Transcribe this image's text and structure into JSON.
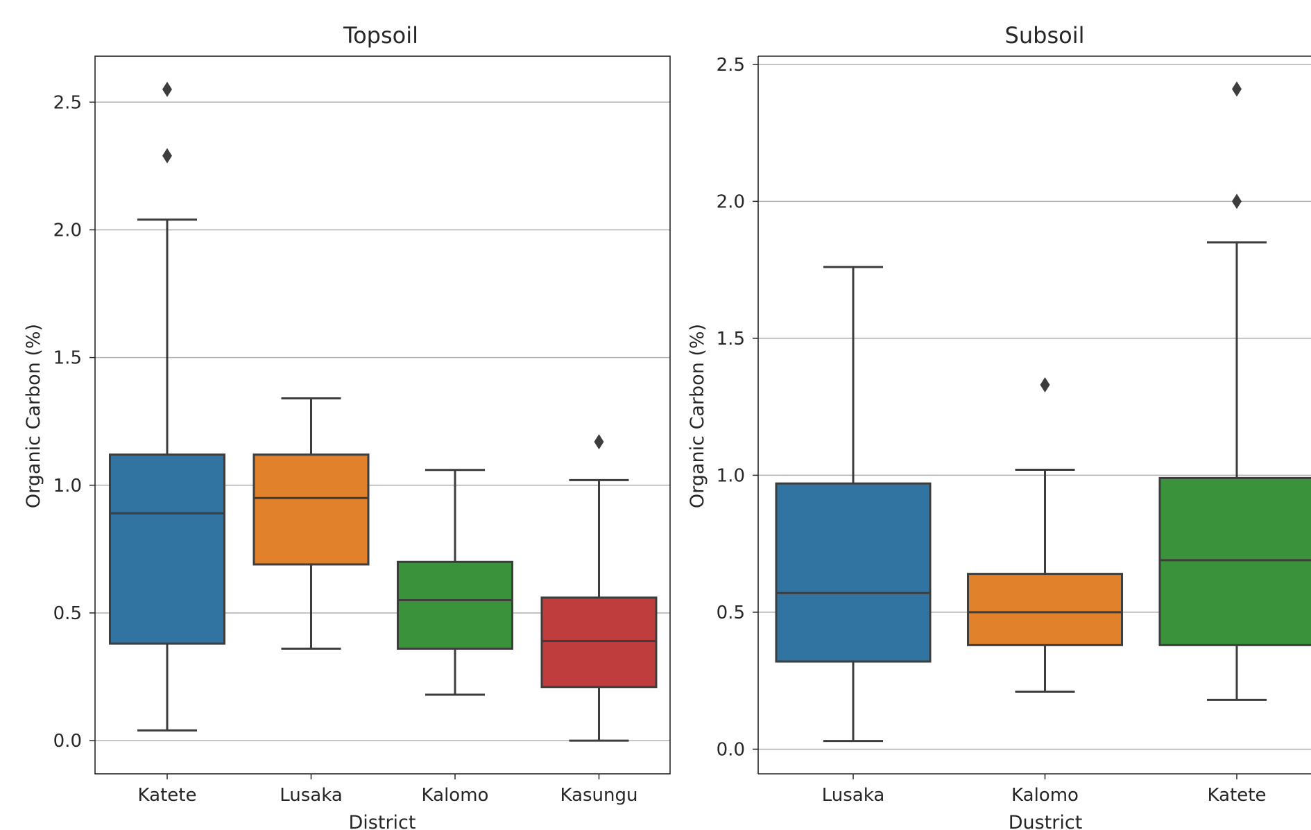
{
  "chart_data": [
    {
      "type": "box",
      "title": "Topsoil",
      "xlabel": "District",
      "ylabel": "Organic Carbon (%)",
      "ylim": [
        -0.13,
        2.68
      ],
      "yticks": [
        "0.0",
        "0.5",
        "1.0",
        "1.5",
        "2.0",
        "2.5"
      ],
      "grid": "horizontal",
      "categories": [
        "Katete",
        "Lusaka",
        "Kalomo",
        "Kasungu"
      ],
      "boxes": [
        {
          "category": "Katete",
          "whisker_low": 0.04,
          "q1": 0.38,
          "median": 0.89,
          "q3": 1.12,
          "whisker_high": 2.04,
          "outliers": [
            2.29,
            2.55
          ],
          "color": "#3274a1"
        },
        {
          "category": "Lusaka",
          "whisker_low": 0.36,
          "q1": 0.69,
          "median": 0.95,
          "q3": 1.12,
          "whisker_high": 1.34,
          "outliers": [],
          "color": "#e1812c"
        },
        {
          "category": "Kalomo",
          "whisker_low": 0.18,
          "q1": 0.36,
          "median": 0.55,
          "q3": 0.7,
          "whisker_high": 1.06,
          "outliers": [],
          "color": "#3a923a"
        },
        {
          "category": "Kasungu",
          "whisker_low": 0.0,
          "q1": 0.21,
          "median": 0.39,
          "q3": 0.56,
          "whisker_high": 1.02,
          "outliers": [
            1.17
          ],
          "color": "#c03d3e"
        }
      ]
    },
    {
      "type": "box",
      "title": "Subsoil",
      "xlabel": "Dustrict",
      "ylabel": "Organic Carbon (%)",
      "ylim": [
        -0.09,
        2.53
      ],
      "yticks": [
        "0.0",
        "0.5",
        "1.0",
        "1.5",
        "2.0",
        "2.5"
      ],
      "grid": "horizontal",
      "categories": [
        "Lusaka",
        "Kalomo",
        "Katete"
      ],
      "boxes": [
        {
          "category": "Lusaka",
          "whisker_low": 0.03,
          "q1": 0.32,
          "median": 0.57,
          "q3": 0.97,
          "whisker_high": 1.76,
          "outliers": [],
          "color": "#3274a1"
        },
        {
          "category": "Kalomo",
          "whisker_low": 0.21,
          "q1": 0.38,
          "median": 0.5,
          "q3": 0.64,
          "whisker_high": 1.02,
          "outliers": [
            1.33
          ],
          "color": "#e1812c"
        },
        {
          "category": "Katete",
          "whisker_low": 0.18,
          "q1": 0.38,
          "median": 0.69,
          "q3": 0.99,
          "whisker_high": 1.85,
          "outliers": [
            2.0,
            2.41
          ],
          "color": "#3a923a"
        }
      ]
    }
  ]
}
